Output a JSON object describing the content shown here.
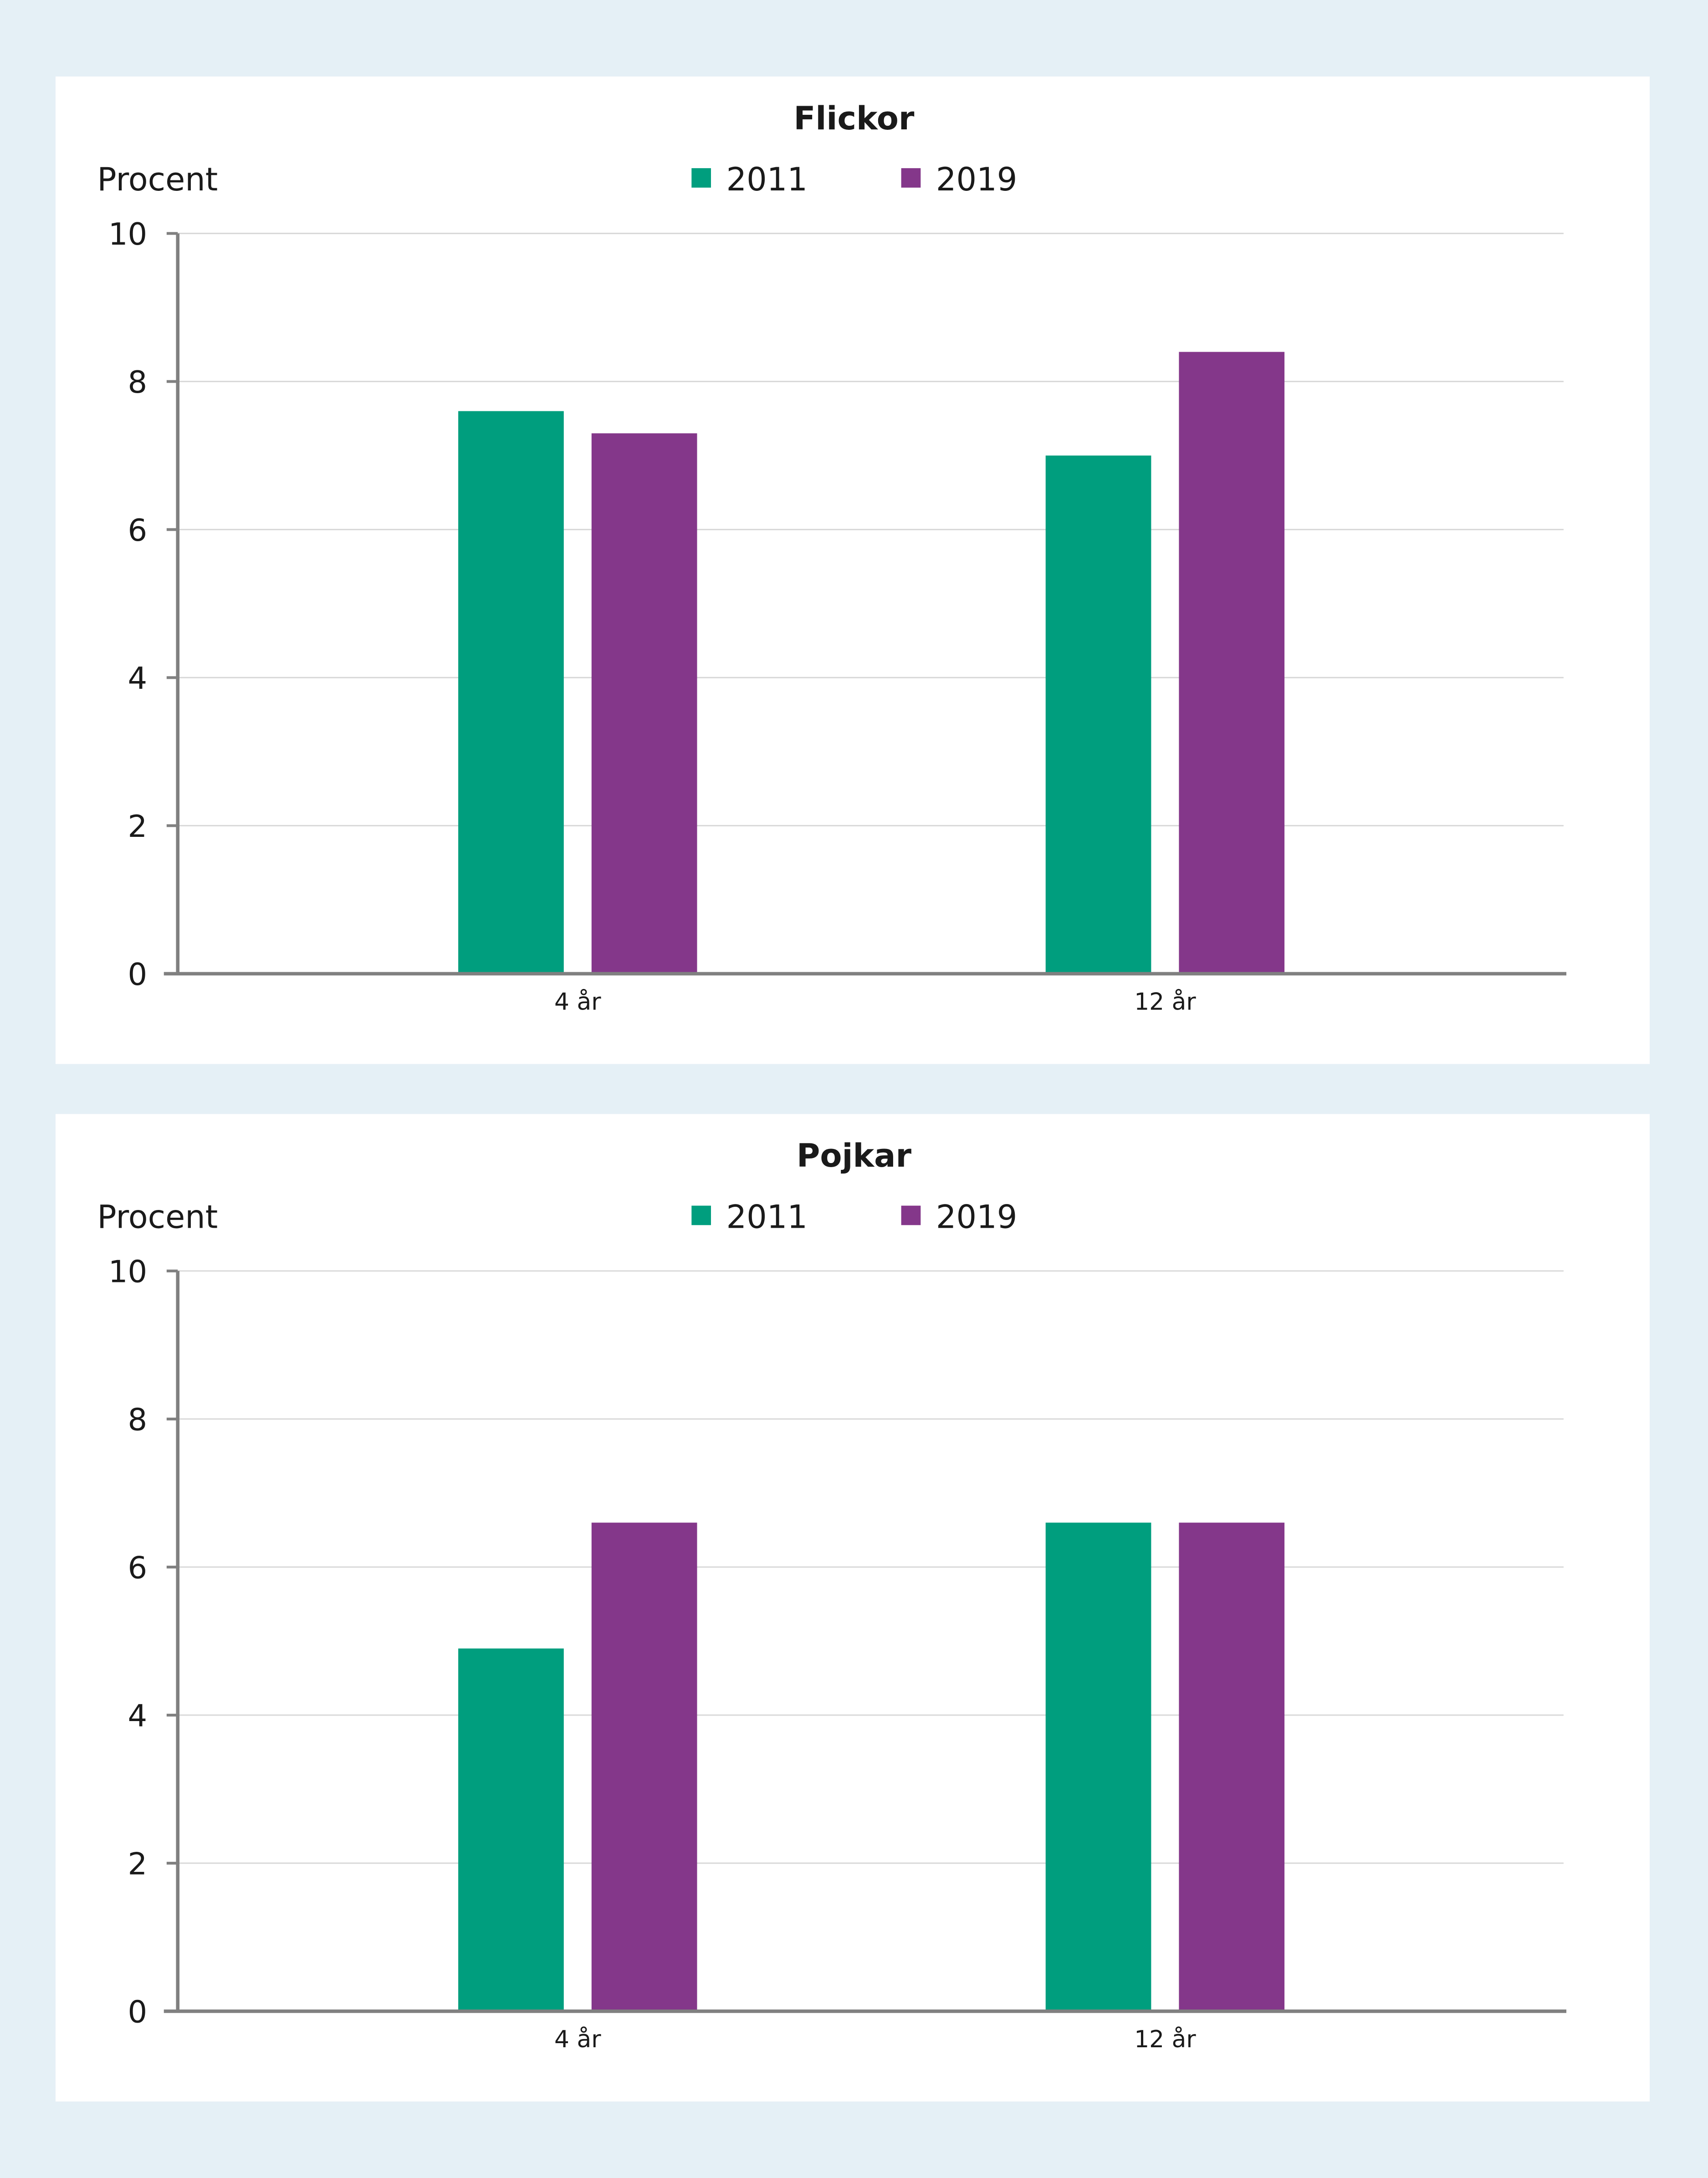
{
  "colors": {
    "background": "#e5f0f6",
    "panel": "#ffffff",
    "grid": "#d9d9d9",
    "axis": "#808080"
  },
  "chart_data": [
    {
      "type": "bar",
      "title": "Flickor",
      "ylabel": "Procent",
      "categories": [
        "4 år",
        "12 år"
      ],
      "ylim": [
        0,
        10
      ],
      "yticks": [
        0,
        2,
        4,
        6,
        8,
        10
      ],
      "grid": true,
      "legend": "top-center",
      "series": [
        {
          "name": "2011",
          "color": "#009e7e",
          "values": [
            7.6,
            7.0
          ]
        },
        {
          "name": "2019",
          "color": "#84378a",
          "values": [
            7.3,
            8.4
          ]
        }
      ]
    },
    {
      "type": "bar",
      "title": "Pojkar",
      "ylabel": "Procent",
      "categories": [
        "4 år",
        "12 år"
      ],
      "ylim": [
        0,
        10
      ],
      "yticks": [
        0,
        2,
        4,
        6,
        8,
        10
      ],
      "grid": true,
      "legend": "top-center",
      "series": [
        {
          "name": "2011",
          "color": "#009e7e",
          "values": [
            4.9,
            6.6
          ]
        },
        {
          "name": "2019",
          "color": "#84378a",
          "values": [
            6.6,
            6.6
          ]
        }
      ]
    }
  ]
}
